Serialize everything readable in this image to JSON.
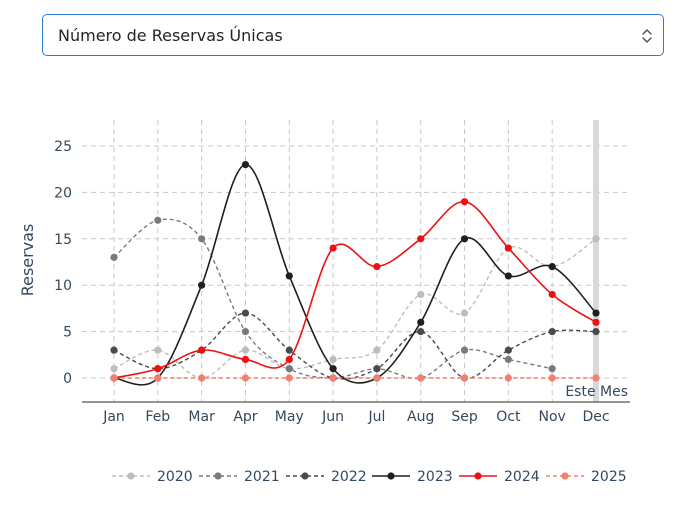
{
  "selector": {
    "selected": "Número de Reservas Únicas",
    "icon": "chevron-updown-icon"
  },
  "chart_data": {
    "type": "line",
    "ylabel": "Reservas",
    "ylim": [
      -2.5,
      28
    ],
    "yticks": [
      0,
      5,
      10,
      15,
      20,
      25
    ],
    "categories": [
      "Jan",
      "Feb",
      "Mar",
      "Apr",
      "May",
      "Jun",
      "Jul",
      "Aug",
      "Sep",
      "Oct",
      "Nov",
      "Dec"
    ],
    "annotation": {
      "category": "Dec",
      "label": "Este Mes"
    },
    "grid": true,
    "legend_position": "bottom",
    "series": [
      {
        "name": "2020",
        "color": "#bdbdbd",
        "dashed": true,
        "values": [
          1,
          3,
          0,
          3,
          1,
          2,
          3,
          9,
          7,
          14,
          12,
          15
        ]
      },
      {
        "name": "2021",
        "color": "#7a7a7a",
        "dashed": true,
        "values": [
          13,
          17,
          15,
          5,
          1,
          0,
          1,
          0,
          3,
          2,
          1,
          null
        ]
      },
      {
        "name": "2022",
        "color": "#4a4a4a",
        "dashed": true,
        "values": [
          3,
          1,
          3,
          7,
          3,
          0,
          1,
          5,
          0,
          3,
          5,
          5
        ]
      },
      {
        "name": "2023",
        "color": "#1f1f1f",
        "dashed": false,
        "values": [
          0,
          0,
          10,
          23,
          11,
          1,
          0,
          6,
          15,
          11,
          12,
          7
        ]
      },
      {
        "name": "2024",
        "color": "#ee1111",
        "dashed": false,
        "values": [
          0,
          1,
          3,
          2,
          2,
          14,
          12,
          15,
          19,
          14,
          9,
          6
        ]
      },
      {
        "name": "2025",
        "color": "#f08070",
        "dashed": true,
        "values": [
          0,
          0,
          0,
          0,
          0,
          0,
          0,
          0,
          0,
          0,
          0,
          0
        ]
      }
    ]
  }
}
